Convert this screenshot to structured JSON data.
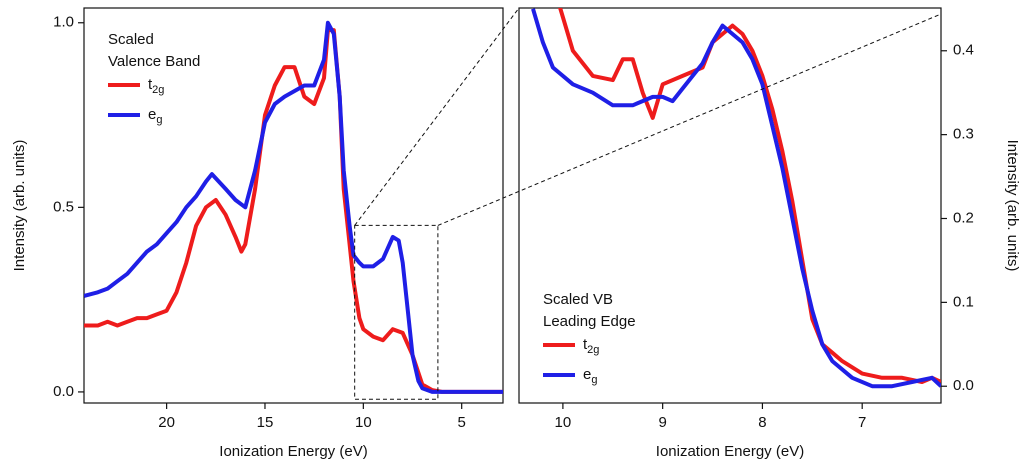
{
  "chart_data": [
    {
      "type": "line",
      "x_label": "Ionization Energy (eV)",
      "y_label": "Intensity (arb. units)",
      "xlim": [
        24.2,
        2.9
      ],
      "ylim": [
        -0.03,
        1.04
      ],
      "xticks": [
        20,
        15,
        10,
        5
      ],
      "yticks": [
        {
          "value": 0,
          "label": "0.0"
        },
        0.5,
        {
          "value": 1,
          "label": "1.0"
        }
      ],
      "legend_title": [
        "Scaled",
        "Valence Band"
      ],
      "series": [
        {
          "name": "t2g",
          "color": "#ee1c1c",
          "x": [
            24.2,
            23.5,
            23,
            22.5,
            22,
            21.5,
            21,
            20.5,
            20,
            19.5,
            19,
            18.5,
            18,
            17.5,
            17,
            16.5,
            16.2,
            16,
            15.5,
            15,
            14.5,
            14,
            13.5,
            13,
            12.5,
            12,
            11.8,
            11.5,
            11.2,
            11,
            10.7,
            10.5,
            10.2,
            10,
            9.5,
            9,
            8.5,
            8,
            7.5,
            7,
            6.5,
            6,
            5,
            4,
            2.9
          ],
          "values": [
            0.18,
            0.18,
            0.19,
            0.18,
            0.19,
            0.2,
            0.2,
            0.21,
            0.22,
            0.27,
            0.35,
            0.45,
            0.5,
            0.52,
            0.48,
            0.42,
            0.38,
            0.4,
            0.55,
            0.75,
            0.83,
            0.88,
            0.88,
            0.8,
            0.78,
            0.85,
            0.98,
            0.98,
            0.8,
            0.55,
            0.4,
            0.3,
            0.2,
            0.17,
            0.15,
            0.14,
            0.17,
            0.16,
            0.1,
            0.02,
            0.005,
            0,
            0,
            0,
            0
          ]
        },
        {
          "name": "eg",
          "color": "#1f1fe6",
          "x": [
            24.2,
            23.5,
            23,
            22.5,
            22,
            21.5,
            21,
            20.5,
            20,
            19.5,
            19,
            18.5,
            18,
            17.7,
            17,
            16.5,
            16,
            15.5,
            15,
            14.5,
            14,
            13,
            12.5,
            12,
            11.8,
            11.5,
            11.2,
            11,
            10.7,
            10.5,
            10.2,
            10,
            9.5,
            9,
            8.5,
            8.2,
            8,
            7.7,
            7.5,
            7.2,
            7,
            6.5,
            5,
            2.9
          ],
          "values": [
            0.26,
            0.27,
            0.28,
            0.3,
            0.32,
            0.35,
            0.38,
            0.4,
            0.43,
            0.46,
            0.5,
            0.53,
            0.57,
            0.59,
            0.55,
            0.52,
            0.5,
            0.6,
            0.73,
            0.78,
            0.8,
            0.83,
            0.83,
            0.9,
            1.0,
            0.97,
            0.8,
            0.6,
            0.45,
            0.37,
            0.35,
            0.34,
            0.34,
            0.36,
            0.42,
            0.41,
            0.35,
            0.2,
            0.1,
            0.03,
            0.01,
            0,
            0,
            0
          ]
        }
      ]
    },
    {
      "type": "line",
      "x_label": "Ionization Energy (eV)",
      "y_label": "Intensity (arb. units)",
      "y_axis_side": "right",
      "xlim": [
        10.44,
        6.21
      ],
      "ylim": [
        -0.02,
        0.451
      ],
      "xticks": [
        10,
        9,
        8,
        7
      ],
      "yticks": [
        {
          "value": 0,
          "label": "0.0"
        },
        0.1,
        0.2,
        0.3,
        0.4
      ],
      "legend_title": [
        "Scaled VB",
        "Leading Edge"
      ],
      "series": [
        {
          "name": "t2g",
          "color": "#ee1c1c",
          "x": [
            10.05,
            10,
            9.9,
            9.7,
            9.5,
            9.4,
            9.3,
            9.2,
            9.1,
            9,
            8.8,
            8.6,
            8.5,
            8.4,
            8.3,
            8.2,
            8.1,
            8,
            7.9,
            7.8,
            7.7,
            7.6,
            7.5,
            7.4,
            7.3,
            7.2,
            7,
            6.8,
            6.6,
            6.4,
            6.3,
            6.21
          ],
          "values": [
            0.46,
            0.44,
            0.4,
            0.37,
            0.365,
            0.39,
            0.39,
            0.35,
            0.32,
            0.36,
            0.37,
            0.38,
            0.41,
            0.42,
            0.43,
            0.42,
            0.4,
            0.37,
            0.33,
            0.28,
            0.22,
            0.15,
            0.08,
            0.05,
            0.04,
            0.03,
            0.015,
            0.01,
            0.01,
            0.005,
            0.01,
            0.005
          ]
        },
        {
          "name": "eg",
          "color": "#1f1fe6",
          "x": [
            10.3,
            10.2,
            10.1,
            9.9,
            9.7,
            9.5,
            9.3,
            9.1,
            9,
            8.9,
            8.8,
            8.6,
            8.5,
            8.4,
            8.3,
            8.2,
            8.1,
            8,
            7.9,
            7.8,
            7.7,
            7.6,
            7.5,
            7.4,
            7.3,
            7.1,
            6.9,
            6.7,
            6.5,
            6.3,
            6.21
          ],
          "values": [
            0.45,
            0.41,
            0.38,
            0.36,
            0.35,
            0.335,
            0.335,
            0.345,
            0.345,
            0.34,
            0.355,
            0.385,
            0.41,
            0.43,
            0.42,
            0.41,
            0.39,
            0.36,
            0.31,
            0.26,
            0.2,
            0.14,
            0.09,
            0.05,
            0.03,
            0.01,
            0,
            0,
            0.005,
            0.01,
            0
          ]
        }
      ]
    }
  ]
}
